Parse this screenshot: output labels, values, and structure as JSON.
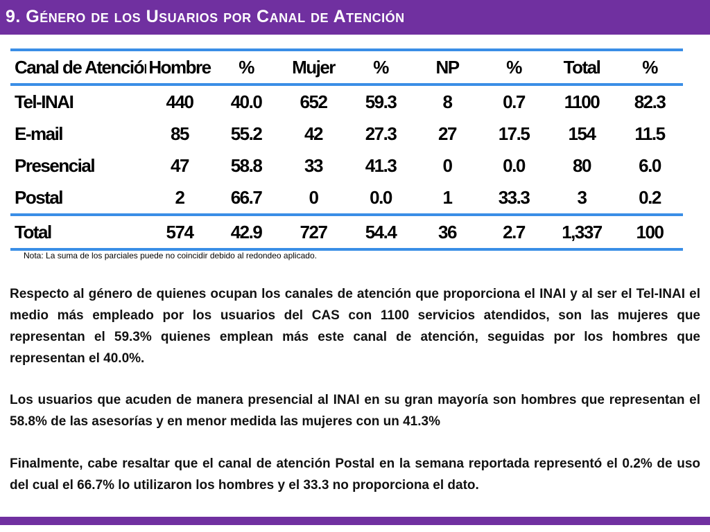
{
  "header": {
    "title": "9. Género de los Usuarios por Canal de Atención",
    "bar_color": "#7030a0"
  },
  "table": {
    "rule_color": "#3a8ee6",
    "headers": [
      "Canal de Atención",
      "Hombre",
      "%",
      "Mujer",
      "%",
      "NP",
      "%",
      "Total",
      "%"
    ],
    "rows": [
      [
        "Tel-INAI",
        "440",
        "40.0",
        "652",
        "59.3",
        "8",
        "0.7",
        "1100",
        "82.3"
      ],
      [
        "E-mail",
        "85",
        "55.2",
        "42",
        "27.3",
        "27",
        "17.5",
        "154",
        "11.5"
      ],
      [
        "Presencial",
        "47",
        "58.8",
        "33",
        "41.3",
        "0",
        "0.0",
        "80",
        "6.0"
      ],
      [
        "Postal",
        "2",
        "66.7",
        "0",
        "0.0",
        "1",
        "33.3",
        "3",
        "0.2"
      ]
    ],
    "total_row": [
      "Total",
      "574",
      "42.9",
      "727",
      "54.4",
      "36",
      "2.7",
      "1,337",
      "100"
    ]
  },
  "note": "Nota: La suma de los parciales puede no coincidir debido al redondeo aplicado.",
  "paragraphs": [
    "Respecto al género de quienes ocupan los canales de atención que proporciona el INAI y al ser el Tel-INAI el medio más empleado por los usuarios del CAS con 1100 servicios atendidos, son las mujeres que representan el 59.3%  quienes emplean más este canal de atención, seguidas por los hombres que representan el 40.0%.",
    "Los usuarios que acuden de manera presencial al INAI en su gran mayoría son hombres que representan el 58.8% de las asesorías y en menor medida las mujeres con un 41.3%",
    "Finalmente, cabe resaltar que el canal de atención Postal en la semana reportada representó el 0.2% de uso del cual el 66.7% lo utilizaron los hombres y el 33.3 no proporciona el dato."
  ]
}
